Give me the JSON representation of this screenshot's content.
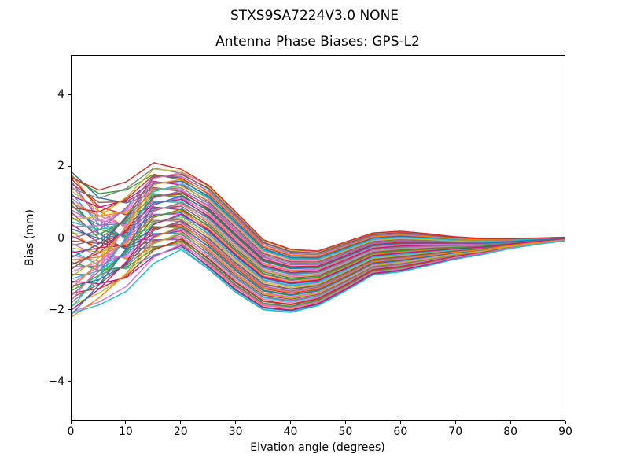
{
  "figure": {
    "suptitle": "STXS9SA7224V3.0 NONE"
  },
  "chart_data": {
    "type": "line",
    "title": "Antenna Phase Biases: GPS-L2",
    "xlabel": "Elvation angle (degrees)",
    "ylabel": "Bias (mm)",
    "xlim": [
      0,
      90
    ],
    "ylim": [
      -5.1,
      5.1
    ],
    "x_ticks": [
      0,
      10,
      20,
      30,
      40,
      50,
      60,
      70,
      80,
      90
    ],
    "y_ticks": [
      -4,
      -2,
      0,
      2,
      4
    ],
    "grid": false,
    "legend": "none",
    "x": [
      0,
      5,
      10,
      15,
      20,
      25,
      30,
      35,
      40,
      45,
      50,
      55,
      60,
      65,
      70,
      75,
      80,
      85,
      90
    ],
    "band_center": [
      -0.18,
      -0.25,
      0.05,
      0.7,
      0.8,
      0.3,
      -0.4,
      -1.03,
      -1.2,
      -1.13,
      -0.8,
      -0.45,
      -0.38,
      -0.33,
      -0.28,
      -0.24,
      -0.16,
      -0.09,
      -0.03
    ],
    "band_halfwidth": [
      2.03,
      1.7,
      1.6,
      1.45,
      1.15,
      1.2,
      1.15,
      1.0,
      0.9,
      0.78,
      0.7,
      0.6,
      0.58,
      0.46,
      0.32,
      0.23,
      0.14,
      0.09,
      0.05
    ],
    "fan_weight": [
      1.0,
      0.75,
      0.45,
      0.18,
      0.05,
      0,
      0,
      0,
      0,
      0,
      0,
      0,
      0,
      0,
      0,
      0,
      0,
      0,
      0
    ],
    "series_rule": "value[k] = band_center[k] + band_halfwidth[k] * ( fan_weight[k]*b + (1-fan_weight[k])*a )",
    "envelope": {
      "start_range_mm": [
        -2.2,
        1.85
      ],
      "peak_at_deg": 15,
      "peak_max_mm": 2.1,
      "trough_at_deg": 40,
      "trough_min_mm": -2.1,
      "end_value_mm": 0.0
    },
    "palette": [
      "#1f77b4",
      "#ff7f0e",
      "#2ca02c",
      "#d62728",
      "#9467bd",
      "#8c564b",
      "#e377c2",
      "#7f7f7f",
      "#bcbd22",
      "#17becf",
      "#c71585",
      "#da70d6"
    ],
    "series_params": [
      [
        0.236,
        1.0
      ],
      [
        -0.528,
        0.967
      ],
      [
        0.708,
        0.934
      ],
      [
        -0.056,
        0.902
      ],
      [
        -0.82,
        0.869
      ],
      [
        0.416,
        0.836
      ],
      [
        -0.348,
        0.803
      ],
      [
        0.888,
        0.77
      ],
      [
        0.124,
        0.738
      ],
      [
        -0.64,
        0.705
      ],
      [
        0.596,
        0.672
      ],
      [
        -0.168,
        0.639
      ],
      [
        -0.932,
        0.607
      ],
      [
        0.304,
        0.574
      ],
      [
        -0.458,
        0.541
      ],
      [
        0.778,
        0.508
      ],
      [
        0.014,
        0.475
      ],
      [
        -0.75,
        0.443
      ],
      [
        0.486,
        0.41
      ],
      [
        -0.278,
        0.377
      ],
      [
        0.958,
        0.344
      ],
      [
        0.194,
        0.311
      ],
      [
        -0.57,
        0.279
      ],
      [
        0.666,
        0.246
      ],
      [
        -0.098,
        0.213
      ],
      [
        -0.862,
        0.18
      ],
      [
        0.374,
        0.148
      ],
      [
        -0.39,
        0.115
      ],
      [
        0.846,
        0.082
      ],
      [
        0.082,
        0.049
      ],
      [
        -0.682,
        0.016
      ],
      [
        0.554,
        -0.016
      ],
      [
        -0.21,
        -0.049
      ],
      [
        -0.974,
        -0.082
      ],
      [
        0.262,
        -0.115
      ],
      [
        -0.502,
        -0.148
      ],
      [
        0.734,
        -0.18
      ],
      [
        -0.03,
        -0.213
      ],
      [
        -0.794,
        -0.246
      ],
      [
        0.442,
        -0.279
      ],
      [
        -0.322,
        -0.311
      ],
      [
        0.914,
        -0.344
      ],
      [
        0.15,
        -0.377
      ],
      [
        -0.614,
        -0.41
      ],
      [
        0.622,
        -0.443
      ],
      [
        -0.142,
        -0.475
      ],
      [
        -0.906,
        -0.508
      ],
      [
        0.33,
        -0.541
      ],
      [
        -0.434,
        -0.574
      ],
      [
        0.802,
        -0.607
      ],
      [
        0.038,
        -0.639
      ],
      [
        -0.726,
        -0.672
      ],
      [
        0.51,
        -0.705
      ],
      [
        -0.254,
        -0.738
      ],
      [
        0.982,
        -0.77
      ],
      [
        0.218,
        -0.803
      ],
      [
        -0.546,
        -0.836
      ],
      [
        0.69,
        -0.869
      ],
      [
        -0.074,
        -0.902
      ],
      [
        -0.838,
        -0.934
      ],
      [
        0.398,
        -0.967
      ],
      [
        -0.366,
        -1.0
      ]
    ],
    "highlight_series": [
      {
        "a": 0.98,
        "b": 0.92,
        "color": "#d62728"
      },
      {
        "a": -0.98,
        "b": -0.95,
        "color": "#17becf"
      }
    ]
  }
}
